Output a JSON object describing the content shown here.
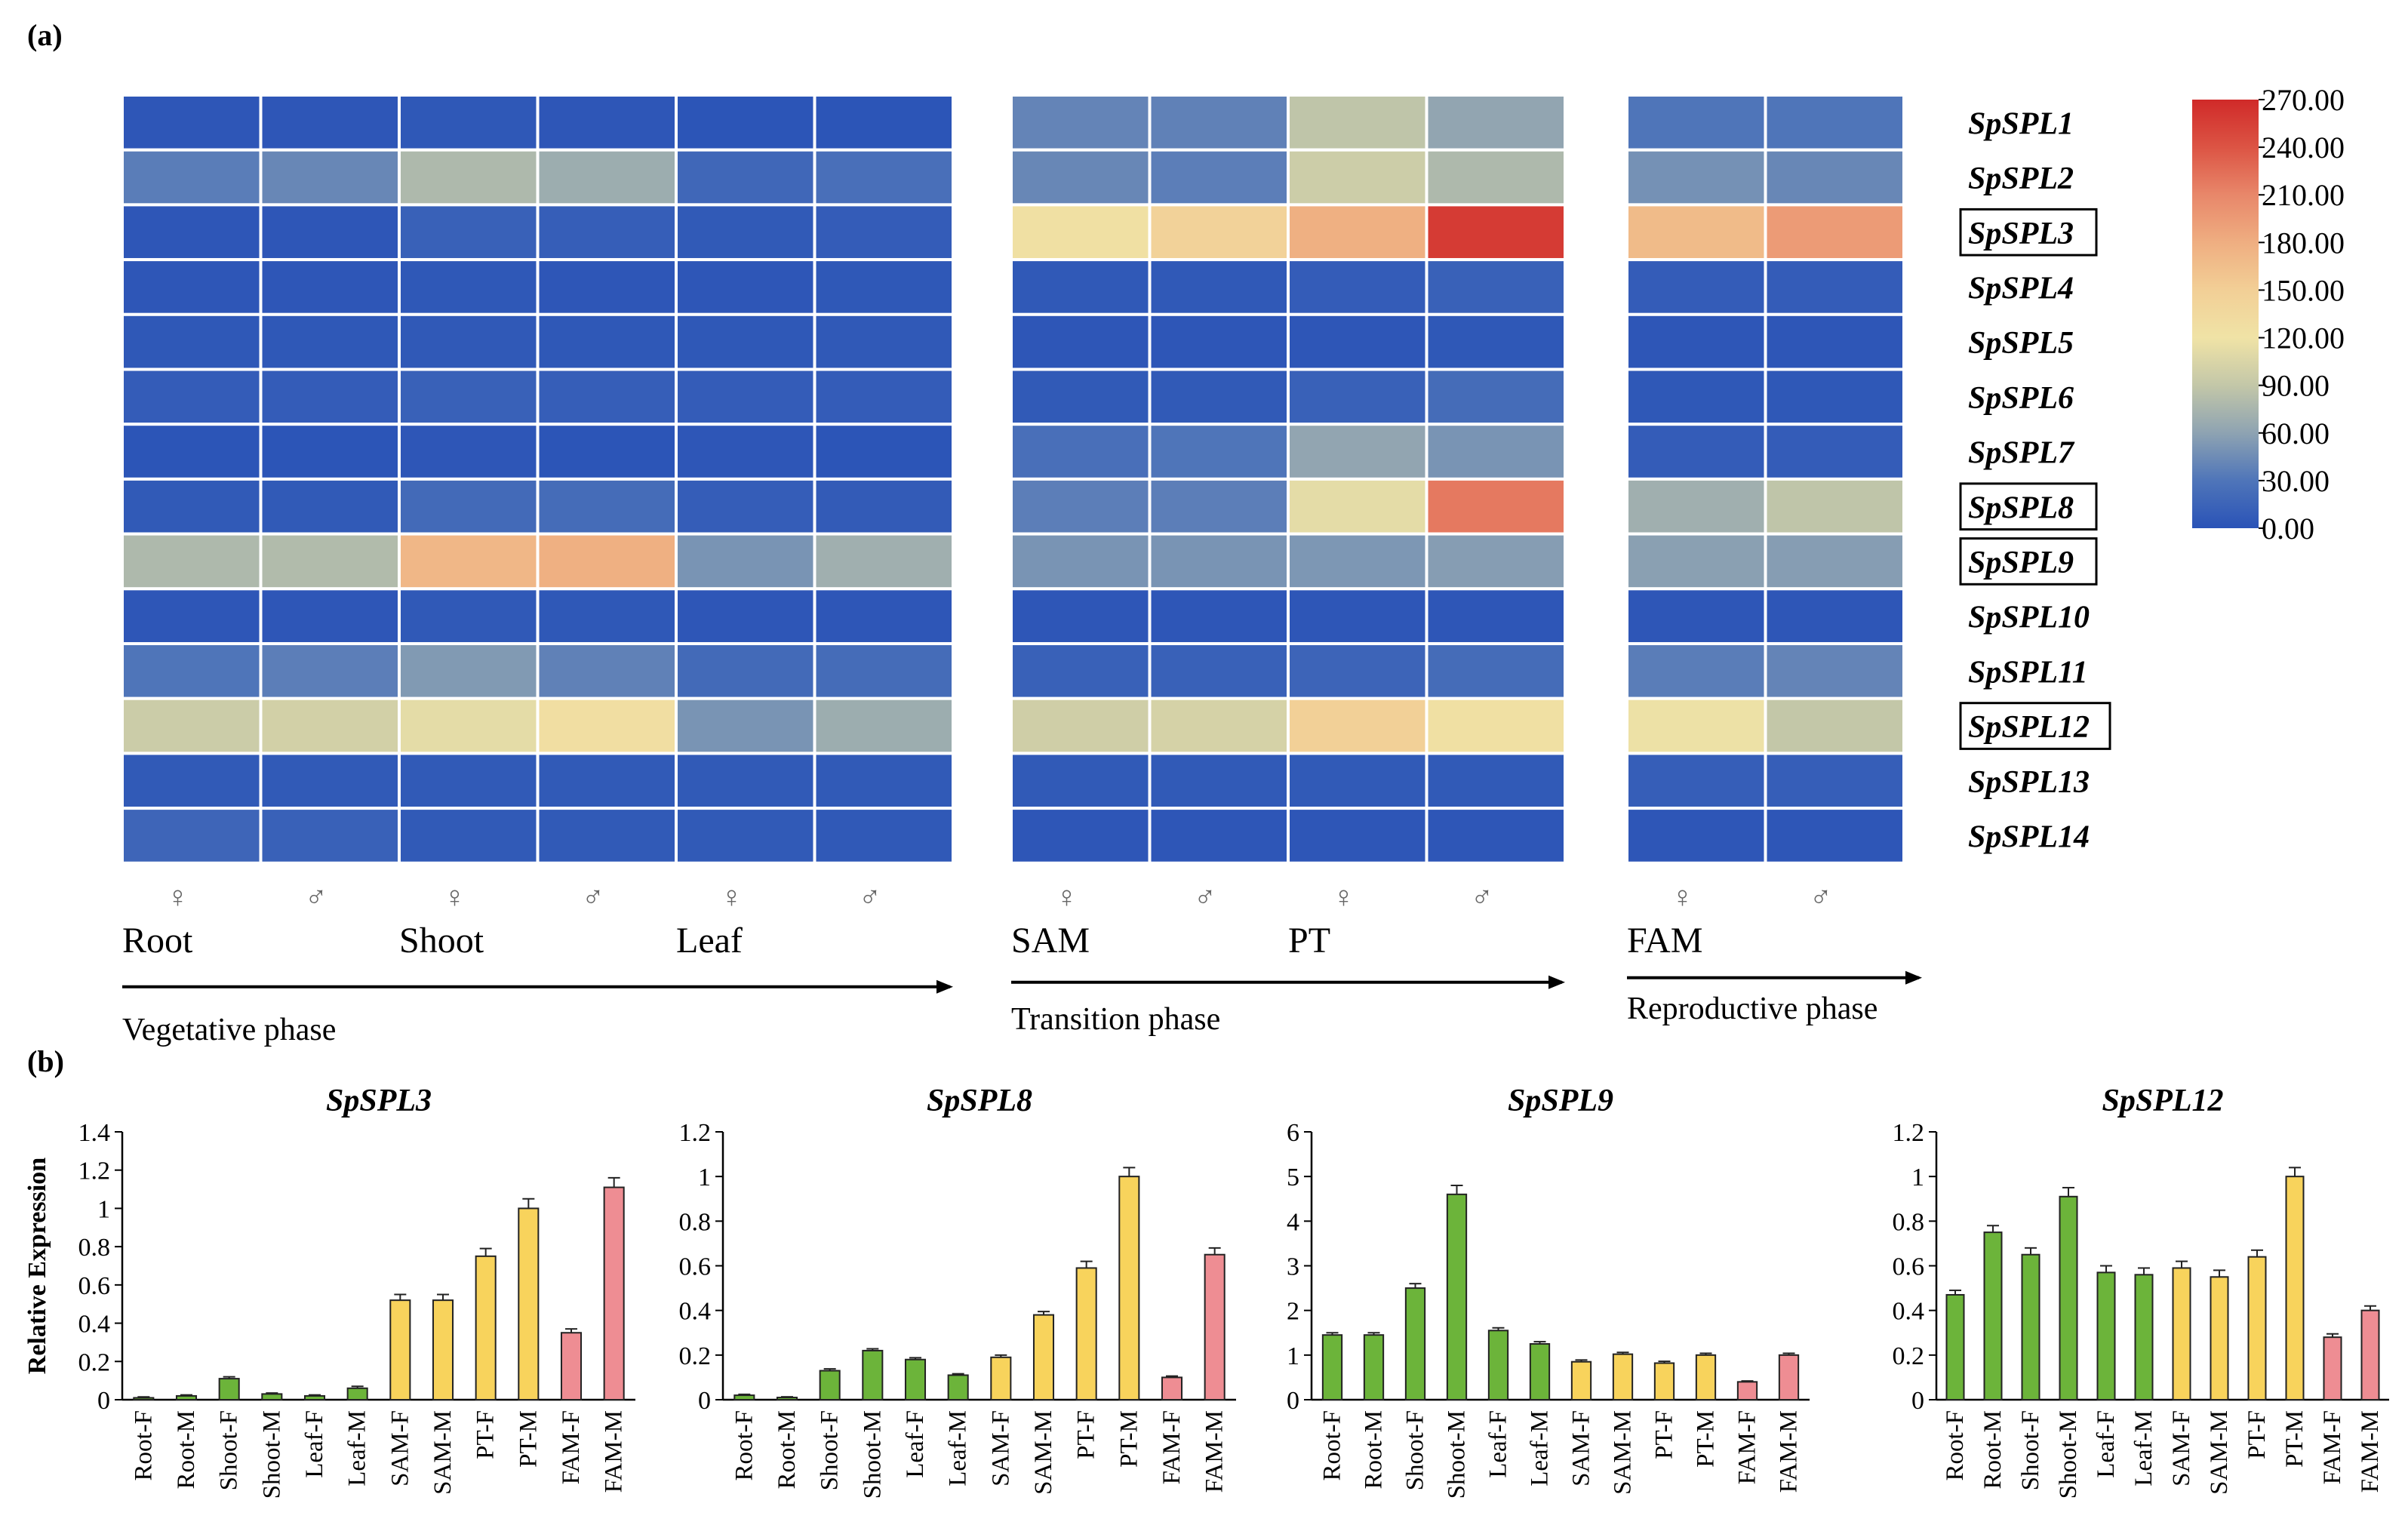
{
  "panel_a_label": "(a)",
  "panel_b_label": "(b)",
  "colors": {
    "grid_line": "#ffffff",
    "green_bar": "#6cb43a",
    "yellow_bar": "#f8d35c",
    "pink_bar": "#ee8d93",
    "bar_edge": "#222222",
    "arrow": "#000000"
  },
  "colorscale": {
    "min": 0,
    "max": 270,
    "ticks": [
      "270.00",
      "240.00",
      "210.00",
      "180.00",
      "150.00",
      "120.00",
      "90.00",
      "60.00",
      "30.00",
      "0.00"
    ],
    "stops": [
      {
        "v": 0,
        "c": "#2a53b7"
      },
      {
        "v": 30,
        "c": "#4f75b9"
      },
      {
        "v": 60,
        "c": "#8ea3b2"
      },
      {
        "v": 90,
        "c": "#c3c7a8"
      },
      {
        "v": 120,
        "c": "#f0e3a6"
      },
      {
        "v": 150,
        "c": "#f2cf96"
      },
      {
        "v": 180,
        "c": "#efae81"
      },
      {
        "v": 210,
        "c": "#e8876a"
      },
      {
        "v": 240,
        "c": "#dc5444"
      },
      {
        "v": 270,
        "c": "#d02a29"
      }
    ]
  },
  "heatmap": {
    "genes": [
      "SpSPL1",
      "SpSPL2",
      "SpSPL3",
      "SpSPL4",
      "SpSPL5",
      "SpSPL6",
      "SpSPL7",
      "SpSPL8",
      "SpSPL9",
      "SpSPL10",
      "SpSPL11",
      "SpSPL12",
      "SpSPL13",
      "SpSPL14"
    ],
    "boxed_genes": [
      "SpSPL3",
      "SpSPL8",
      "SpSPL9",
      "SpSPL12"
    ],
    "female_symbol": "♀",
    "male_symbol": "♂",
    "blocks": [
      {
        "phase": "Vegetative phase",
        "groups": [
          "Root",
          "Shoot",
          "Leaf"
        ],
        "columns": [
          "Root-F",
          "Root-M",
          "Shoot-F",
          "Shoot-M",
          "Leaf-F",
          "Leaf-M"
        ],
        "values": [
          [
            3,
            3,
            4,
            3,
            2,
            2
          ],
          [
            35,
            42,
            78,
            68,
            18,
            25
          ],
          [
            3,
            3,
            12,
            10,
            6,
            8
          ],
          [
            3,
            3,
            4,
            3,
            3,
            4
          ],
          [
            4,
            4,
            5,
            4,
            4,
            5
          ],
          [
            8,
            8,
            12,
            10,
            8,
            8
          ],
          [
            2,
            2,
            3,
            2,
            3,
            2
          ],
          [
            6,
            6,
            20,
            22,
            9,
            7
          ],
          [
            78,
            80,
            172,
            178,
            50,
            70
          ],
          [
            3,
            3,
            5,
            4,
            3,
            3
          ],
          [
            30,
            36,
            54,
            38,
            20,
            22
          ],
          [
            95,
            100,
            112,
            128,
            50,
            68
          ],
          [
            6,
            6,
            6,
            6,
            6,
            6
          ],
          [
            16,
            12,
            6,
            6,
            6,
            5
          ]
        ]
      },
      {
        "phase": "Transition phase",
        "groups": [
          "SAM",
          "PT"
        ],
        "columns": [
          "SAM-F",
          "SAM-M",
          "PT-F",
          "PT-M"
        ],
        "values": [
          [
            40,
            38,
            88,
            62
          ],
          [
            42,
            36,
            96,
            78
          ],
          [
            125,
            145,
            178,
            258
          ],
          [
            5,
            5,
            8,
            12
          ],
          [
            3,
            3,
            3,
            4
          ],
          [
            6,
            6,
            12,
            22
          ],
          [
            25,
            30,
            62,
            50
          ],
          [
            36,
            36,
            112,
            218
          ],
          [
            50,
            50,
            52,
            56
          ],
          [
            3,
            3,
            3,
            3
          ],
          [
            12,
            12,
            15,
            22
          ],
          [
            98,
            102,
            148,
            125
          ],
          [
            6,
            6,
            6,
            6
          ],
          [
            3,
            3,
            3,
            3
          ]
        ]
      },
      {
        "phase": "Reproductive phase",
        "groups": [
          "FAM"
        ],
        "columns": [
          "FAM-F",
          "FAM-M"
        ],
        "values": [
          [
            30,
            30
          ],
          [
            48,
            42
          ],
          [
            168,
            195
          ],
          [
            8,
            8
          ],
          [
            3,
            3
          ],
          [
            4,
            4
          ],
          [
            8,
            8
          ],
          [
            70,
            88
          ],
          [
            58,
            56
          ],
          [
            3,
            3
          ],
          [
            35,
            40
          ],
          [
            118,
            90
          ],
          [
            10,
            10
          ],
          [
            3,
            3
          ]
        ]
      }
    ]
  },
  "chart_data": [
    {
      "type": "bar",
      "title": "SpSPL3",
      "ylabel": "Relative Expression",
      "categories": [
        "Root-F",
        "Root-M",
        "Shoot-F",
        "Shoot-M",
        "Leaf-F",
        "Leaf-M",
        "SAM-F",
        "SAM-M",
        "PT-F",
        "PT-M",
        "FAM-F",
        "FAM-M"
      ],
      "values": [
        0.01,
        0.02,
        0.11,
        0.03,
        0.02,
        0.06,
        0.52,
        0.52,
        0.75,
        1.0,
        0.35,
        1.11
      ],
      "errors": [
        0.005,
        0.005,
        0.01,
        0.005,
        0.005,
        0.01,
        0.03,
        0.03,
        0.04,
        0.05,
        0.02,
        0.05
      ],
      "yticks": [
        "0",
        "0.2",
        "0.4",
        "0.6",
        "0.8",
        "1",
        "1.2",
        "1.4"
      ],
      "ylim": [
        0,
        1.4
      ]
    },
    {
      "type": "bar",
      "title": "SpSPL8",
      "ylabel": "",
      "categories": [
        "Root-F",
        "Root-M",
        "Shoot-F",
        "Shoot-M",
        "Leaf-F",
        "Leaf-M",
        "SAM-F",
        "SAM-M",
        "PT-F",
        "PT-M",
        "FAM-F",
        "FAM-M"
      ],
      "values": [
        0.02,
        0.01,
        0.13,
        0.22,
        0.18,
        0.11,
        0.19,
        0.38,
        0.59,
        1.0,
        0.1,
        0.65
      ],
      "errors": [
        0.004,
        0.003,
        0.008,
        0.008,
        0.008,
        0.006,
        0.01,
        0.015,
        0.03,
        0.04,
        0.006,
        0.03
      ],
      "yticks": [
        "0",
        "0.2",
        "0.4",
        "0.6",
        "0.8",
        "1",
        "1.2"
      ],
      "ylim": [
        0,
        1.2
      ]
    },
    {
      "type": "bar",
      "title": "SpSPL9",
      "ylabel": "",
      "categories": [
        "Root-F",
        "Root-M",
        "Shoot-F",
        "Shoot-M",
        "Leaf-F",
        "Leaf-M",
        "SAM-F",
        "SAM-M",
        "PT-F",
        "PT-M",
        "FAM-F",
        "FAM-M"
      ],
      "values": [
        1.45,
        1.45,
        2.5,
        4.6,
        1.55,
        1.25,
        0.85,
        1.02,
        0.82,
        1.0,
        0.4,
        1.0
      ],
      "errors": [
        0.05,
        0.05,
        0.1,
        0.2,
        0.06,
        0.05,
        0.04,
        0.04,
        0.04,
        0.04,
        0.02,
        0.04
      ],
      "yticks": [
        "0",
        "1",
        "2",
        "3",
        "4",
        "5",
        "6"
      ],
      "ylim": [
        0,
        6
      ]
    },
    {
      "type": "bar",
      "title": "SpSPL12",
      "ylabel": "",
      "categories": [
        "Root-F",
        "Root-M",
        "Shoot-F",
        "Shoot-M",
        "Leaf-F",
        "Leaf-M",
        "SAM-F",
        "SAM-M",
        "PT-F",
        "PT-M",
        "FAM-F",
        "FAM-M"
      ],
      "values": [
        0.47,
        0.75,
        0.65,
        0.91,
        0.57,
        0.56,
        0.59,
        0.55,
        0.64,
        1.0,
        0.28,
        0.4
      ],
      "errors": [
        0.02,
        0.03,
        0.03,
        0.04,
        0.03,
        0.03,
        0.03,
        0.03,
        0.03,
        0.04,
        0.015,
        0.02
      ],
      "yticks": [
        "0",
        "0.2",
        "0.4",
        "0.6",
        "0.8",
        "1",
        "1.2"
      ],
      "ylim": [
        0,
        1.2
      ]
    }
  ]
}
